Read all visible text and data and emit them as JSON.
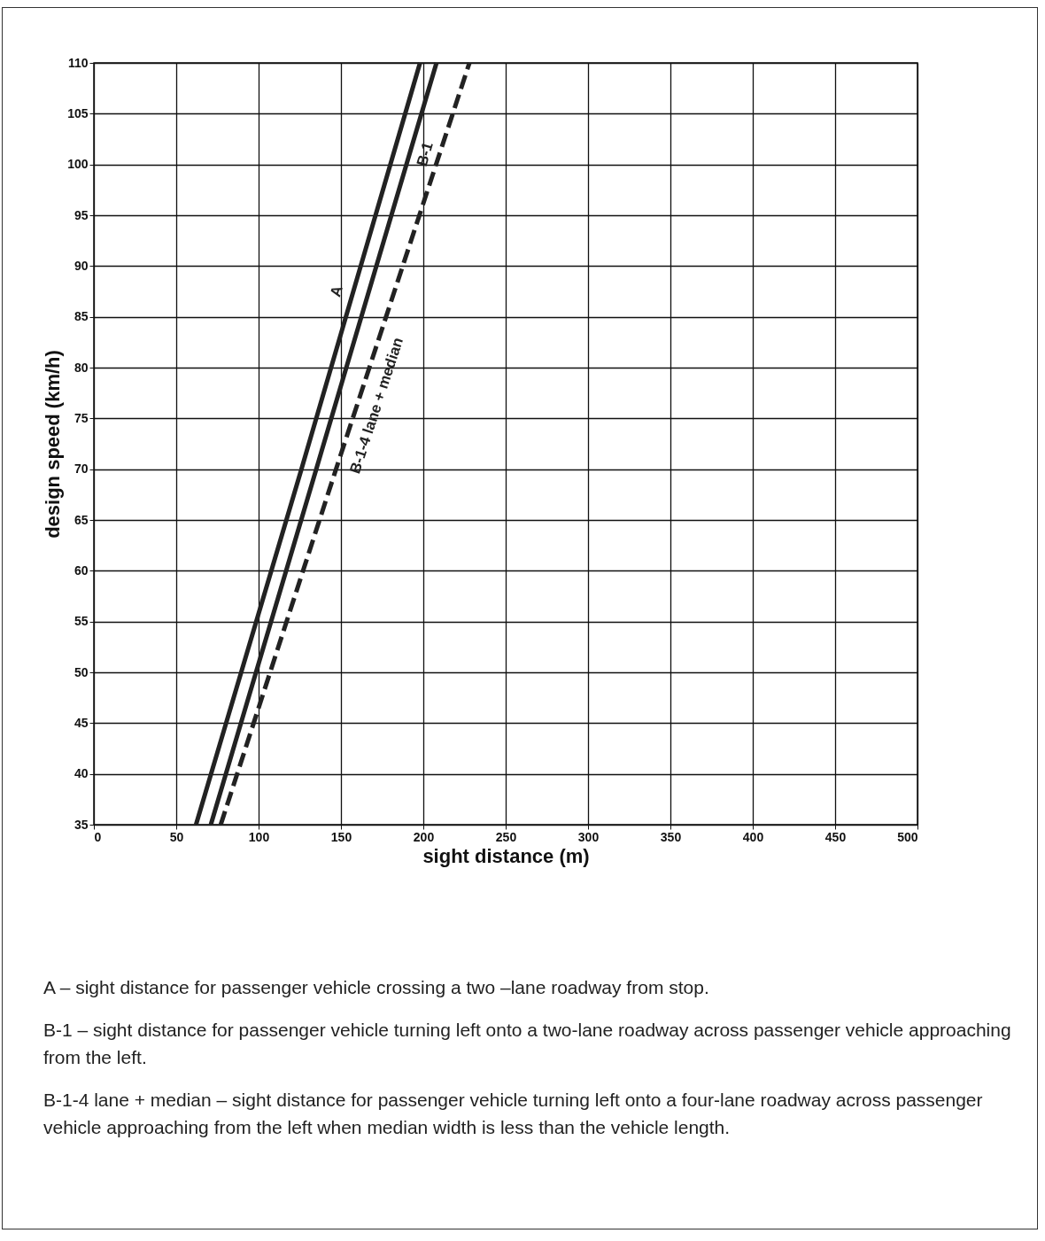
{
  "chart_data": {
    "type": "line",
    "xlabel": "sight distance (m)",
    "ylabel": "design speed (km/h)",
    "xlim": [
      0,
      500
    ],
    "xticks": [
      0,
      50,
      100,
      150,
      200,
      250,
      300,
      350,
      400,
      450,
      500
    ],
    "ylim": [
      35,
      110
    ],
    "yticks": [
      35,
      40,
      45,
      50,
      55,
      60,
      65,
      70,
      75,
      80,
      85,
      90,
      95,
      100,
      105,
      110
    ],
    "grid": true,
    "legend": false,
    "marker": "none",
    "series": [
      {
        "name": "A",
        "color": "#222222",
        "line_style": "solid",
        "x": [
          62,
          126,
          198
        ],
        "values": [
          35,
          70,
          110
        ]
      },
      {
        "name": "B-1",
        "color": "#222222",
        "line_style": "solid",
        "x": [
          71,
          135,
          208
        ],
        "values": [
          35,
          70,
          110
        ]
      },
      {
        "name": "B-1-4 lane + median",
        "color": "#222222",
        "line_style": "dashed",
        "x": [
          77,
          147,
          228
        ],
        "values": [
          35,
          70,
          110
        ]
      }
    ],
    "annotations": [
      "A – sight distance for passenger vehicle crossing a two –lane roadway from stop.",
      "B-1 – sight distance for passenger vehicle turning left onto a two-lane roadway across passenger vehicle approaching from the left.",
      "B-1-4 lane + median – sight distance for passenger vehicle turning left onto a four-lane roadway across passenger vehicle approaching from the left when median width is less than the vehicle length."
    ]
  }
}
